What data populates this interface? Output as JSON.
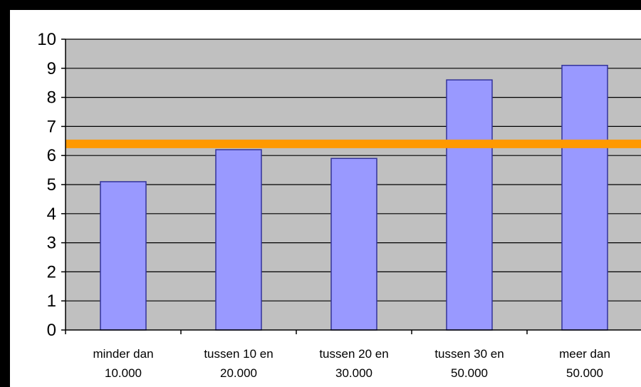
{
  "chart_data": {
    "type": "bar",
    "categories": [
      [
        "minder dan",
        "10.000"
      ],
      [
        "tussen 10 en",
        "20.000"
      ],
      [
        "tussen 20 en",
        "30.000"
      ],
      [
        "tussen 30 en",
        "50.000"
      ],
      [
        "meer dan",
        "50.000"
      ]
    ],
    "values": [
      5.1,
      6.2,
      5.9,
      8.6,
      9.1
    ],
    "reference_line": 6.4,
    "ylim": [
      0,
      10
    ],
    "yticks": [
      0,
      1,
      2,
      3,
      4,
      5,
      6,
      7,
      8,
      9,
      10
    ],
    "title": "",
    "xlabel": "",
    "ylabel": "",
    "grid": true,
    "legend": "none",
    "colors": {
      "bar_fill": "#9999ff",
      "bar_stroke": "#333399",
      "plot_background": "#c0c0c0",
      "grid": "#000000",
      "reference_line": "#ff9900",
      "outer_frame": "#000000",
      "chart_background": "#ffffff"
    }
  }
}
